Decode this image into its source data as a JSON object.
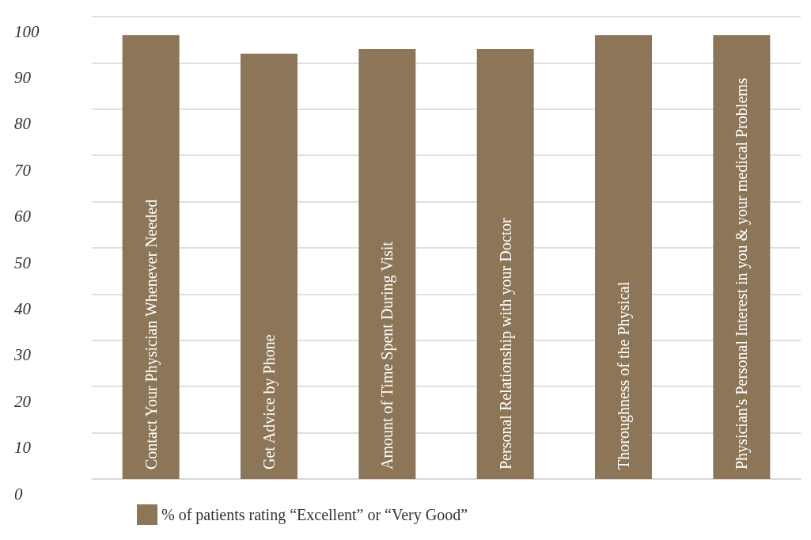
{
  "chart_data": {
    "type": "bar",
    "categories": [
      "Contact Your Physician Whenever Needed",
      "Get Advice by Phone",
      "Amount of Time Spent During Visit",
      "Personal Relationship with your Doctor",
      "Thoroughness of the Physical",
      "Physician's Personal Interest in you & your medical Problems"
    ],
    "series": [
      {
        "name": "% of patients rating “Excellent” or “Very Good”",
        "color": "#8c7657",
        "values": [
          96,
          92,
          93,
          93,
          96,
          96
        ]
      }
    ],
    "ylim": [
      0,
      100
    ],
    "yticks": [
      0,
      10,
      20,
      30,
      40,
      50,
      60,
      70,
      80,
      90,
      100
    ],
    "grid": "y",
    "legend": "bottom",
    "tick_labels": "y"
  }
}
